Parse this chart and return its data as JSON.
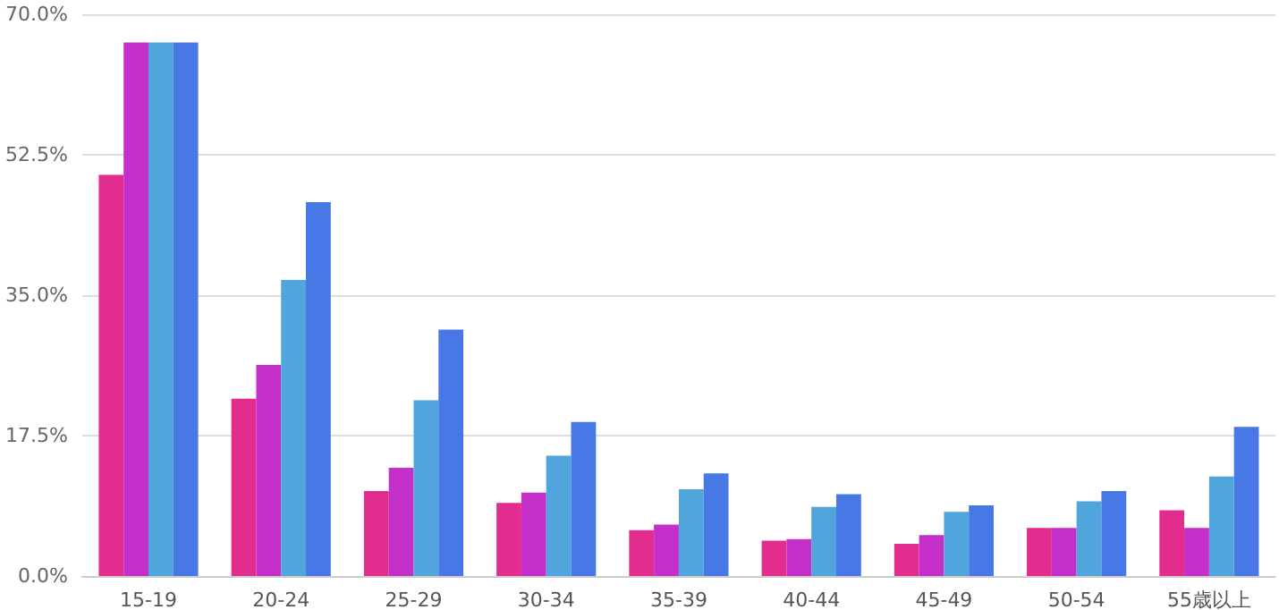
{
  "chart_data": {
    "type": "bar",
    "categories": [
      "15-19",
      "20-24",
      "25-29",
      "30-34",
      "35-39",
      "40-44",
      "45-49",
      "50-54",
      "55歳以上"
    ],
    "series": [
      {
        "color": "#e32d8e",
        "values": [
          50,
          22.1,
          10.6,
          9.1,
          5.7,
          4.4,
          4.0,
          6.0,
          8.2
        ]
      },
      {
        "color": "#c42fc9",
        "values": [
          66.5,
          26.3,
          13.5,
          10.4,
          6.4,
          4.6,
          5.1,
          6.0,
          6.0
        ]
      },
      {
        "color": "#4fa5dc",
        "values": [
          66.5,
          36.9,
          21.9,
          15.0,
          10.8,
          8.6,
          8.0,
          9.3,
          12.4
        ]
      },
      {
        "color": "#4877e6",
        "values": [
          66.5,
          46.6,
          30.7,
          19.2,
          12.8,
          10.2,
          8.8,
          10.6,
          18.6
        ]
      }
    ],
    "ylim": [
      0,
      70
    ],
    "yticks": [
      {
        "value": 0,
        "label": "0.0%"
      },
      {
        "value": 17.5,
        "label": "17.5%"
      },
      {
        "value": 35,
        "label": "35.0%"
      },
      {
        "value": 52.5,
        "label": "52.5%"
      },
      {
        "value": 70,
        "label": "70.0%"
      }
    ],
    "grid": "y"
  }
}
